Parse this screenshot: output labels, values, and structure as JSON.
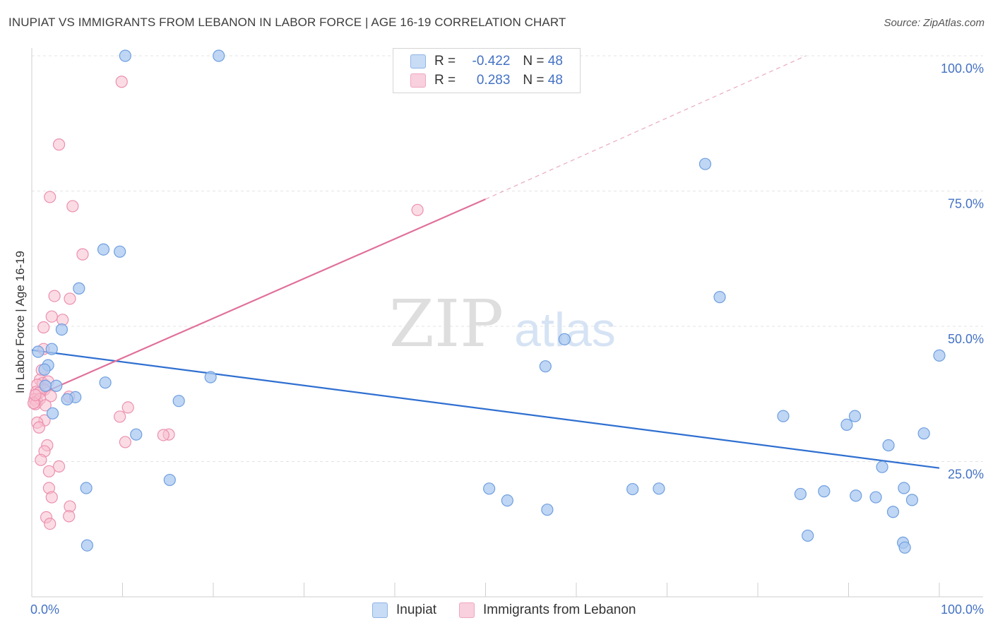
{
  "title": "INUPIAT VS IMMIGRANTS FROM LEBANON IN LABOR FORCE | AGE 16-19 CORRELATION CHART",
  "source": "Source: ZipAtlas.com",
  "watermark": {
    "zip": "ZIP",
    "atlas": "atlas"
  },
  "colors": {
    "blue_fill": "#aac8f0",
    "blue_stroke": "#6f9fe0",
    "blue_line": "#2f6fd1",
    "pink_fill": "#f7bfd0",
    "pink_stroke": "#ec8fae",
    "pink_line": "#e0709a",
    "tick_text": "#4472c4",
    "grid": "#e3e3e3"
  },
  "legend": {
    "rows": [
      {
        "r_label": "R =",
        "r_value": "-0.422",
        "n_label": "N =",
        "n_value": "48"
      },
      {
        "r_label": "R =",
        "r_value": "0.283",
        "n_label": "N =",
        "n_value": "48"
      }
    ]
  },
  "chart_data": {
    "type": "scatter",
    "title": "INUPIAT VS IMMIGRANTS FROM LEBANON IN LABOR FORCE | AGE 16-19 CORRELATION CHART",
    "xlabel": "",
    "ylabel": "In Labor Force | Age 16-19",
    "xlim": [
      0,
      100
    ],
    "ylim": [
      0,
      100
    ],
    "x_tick_labels": [
      "0.0%",
      "100.0%"
    ],
    "y_ticks": [
      25,
      50,
      75,
      100
    ],
    "y_tick_labels": [
      "25.0%",
      "50.0%",
      "75.0%",
      "100.0%"
    ],
    "legend_bottom": [
      "Inupiat",
      "Immigrants from Lebanon"
    ],
    "series": [
      {
        "name": "Inupiat",
        "r": -0.422,
        "n": 48,
        "trend": {
          "x0": 0,
          "y0": 45.6,
          "x1": 100,
          "y1": 23.8
        },
        "points": [
          [
            10.3,
            100
          ],
          [
            20.6,
            100
          ],
          [
            74.2,
            80.0
          ],
          [
            7.9,
            64.2
          ],
          [
            9.7,
            63.8
          ],
          [
            5.2,
            57.0
          ],
          [
            75.8,
            55.4
          ],
          [
            3.3,
            49.4
          ],
          [
            58.7,
            47.6
          ],
          [
            2.2,
            45.8
          ],
          [
            0.7,
            45.3
          ],
          [
            100,
            44.6
          ],
          [
            1.8,
            42.8
          ],
          [
            1.4,
            42.0
          ],
          [
            56.6,
            42.6
          ],
          [
            19.7,
            40.6
          ],
          [
            8.1,
            39.6
          ],
          [
            2.7,
            39.0
          ],
          [
            4.8,
            36.9
          ],
          [
            3.9,
            36.5
          ],
          [
            16.2,
            36.2
          ],
          [
            2.3,
            33.9
          ],
          [
            82.8,
            33.4
          ],
          [
            90.7,
            33.4
          ],
          [
            89.8,
            31.8
          ],
          [
            11.5,
            30.0
          ],
          [
            98.3,
            30.2
          ],
          [
            94.4,
            28.0
          ],
          [
            93.7,
            24.0
          ],
          [
            15.2,
            21.6
          ],
          [
            6.0,
            20.1
          ],
          [
            50.4,
            20.0
          ],
          [
            66.2,
            19.9
          ],
          [
            69.1,
            20.0
          ],
          [
            84.7,
            19.0
          ],
          [
            87.3,
            19.5
          ],
          [
            90.8,
            18.7
          ],
          [
            93.0,
            18.4
          ],
          [
            96.1,
            20.1
          ],
          [
            97.0,
            17.9
          ],
          [
            52.4,
            17.8
          ],
          [
            56.8,
            16.1
          ],
          [
            94.9,
            15.7
          ],
          [
            6.1,
            9.5
          ],
          [
            85.5,
            11.3
          ],
          [
            96.0,
            10.0
          ],
          [
            96.2,
            9.1
          ],
          [
            1.5,
            39.0
          ]
        ]
      },
      {
        "name": "Immigrants from Lebanon",
        "r": 0.283,
        "n": 48,
        "trend": {
          "x0": 0,
          "y0": 36.8,
          "x1": 50,
          "y1": 73.5
        },
        "trend_dashed": {
          "x0": 50,
          "y0": 73.5,
          "x1": 85.3,
          "y1": 100
        },
        "points": [
          [
            9.9,
            95.2
          ],
          [
            3.0,
            83.6
          ],
          [
            2.0,
            73.9
          ],
          [
            4.5,
            72.2
          ],
          [
            42.5,
            71.5
          ],
          [
            5.6,
            63.3
          ],
          [
            2.5,
            55.6
          ],
          [
            4.2,
            55.1
          ],
          [
            2.2,
            51.8
          ],
          [
            3.4,
            51.2
          ],
          [
            1.3,
            49.8
          ],
          [
            1.3,
            45.8
          ],
          [
            1.1,
            41.9
          ],
          [
            0.9,
            40.1
          ],
          [
            1.2,
            39.5
          ],
          [
            1.8,
            39.8
          ],
          [
            0.6,
            39.2
          ],
          [
            1.4,
            38.3
          ],
          [
            0.5,
            37.9
          ],
          [
            0.8,
            37.7
          ],
          [
            2.1,
            37.1
          ],
          [
            4.1,
            37.0
          ],
          [
            0.3,
            36.5
          ],
          [
            0.6,
            36.0
          ],
          [
            0.9,
            36.6
          ],
          [
            0.4,
            35.6
          ],
          [
            1.5,
            35.4
          ],
          [
            10.6,
            35.0
          ],
          [
            9.7,
            33.3
          ],
          [
            1.4,
            32.6
          ],
          [
            0.6,
            32.2
          ],
          [
            0.8,
            31.3
          ],
          [
            15.1,
            30.0
          ],
          [
            14.5,
            29.9
          ],
          [
            10.3,
            28.6
          ],
          [
            1.7,
            28.0
          ],
          [
            1.4,
            26.9
          ],
          [
            1.0,
            25.3
          ],
          [
            3.0,
            24.1
          ],
          [
            1.9,
            23.2
          ],
          [
            1.9,
            20.1
          ],
          [
            2.2,
            18.4
          ],
          [
            4.2,
            16.7
          ],
          [
            4.1,
            14.9
          ],
          [
            1.6,
            14.7
          ],
          [
            2.0,
            13.5
          ],
          [
            0.2,
            35.8
          ],
          [
            0.4,
            37.3
          ]
        ]
      }
    ]
  }
}
